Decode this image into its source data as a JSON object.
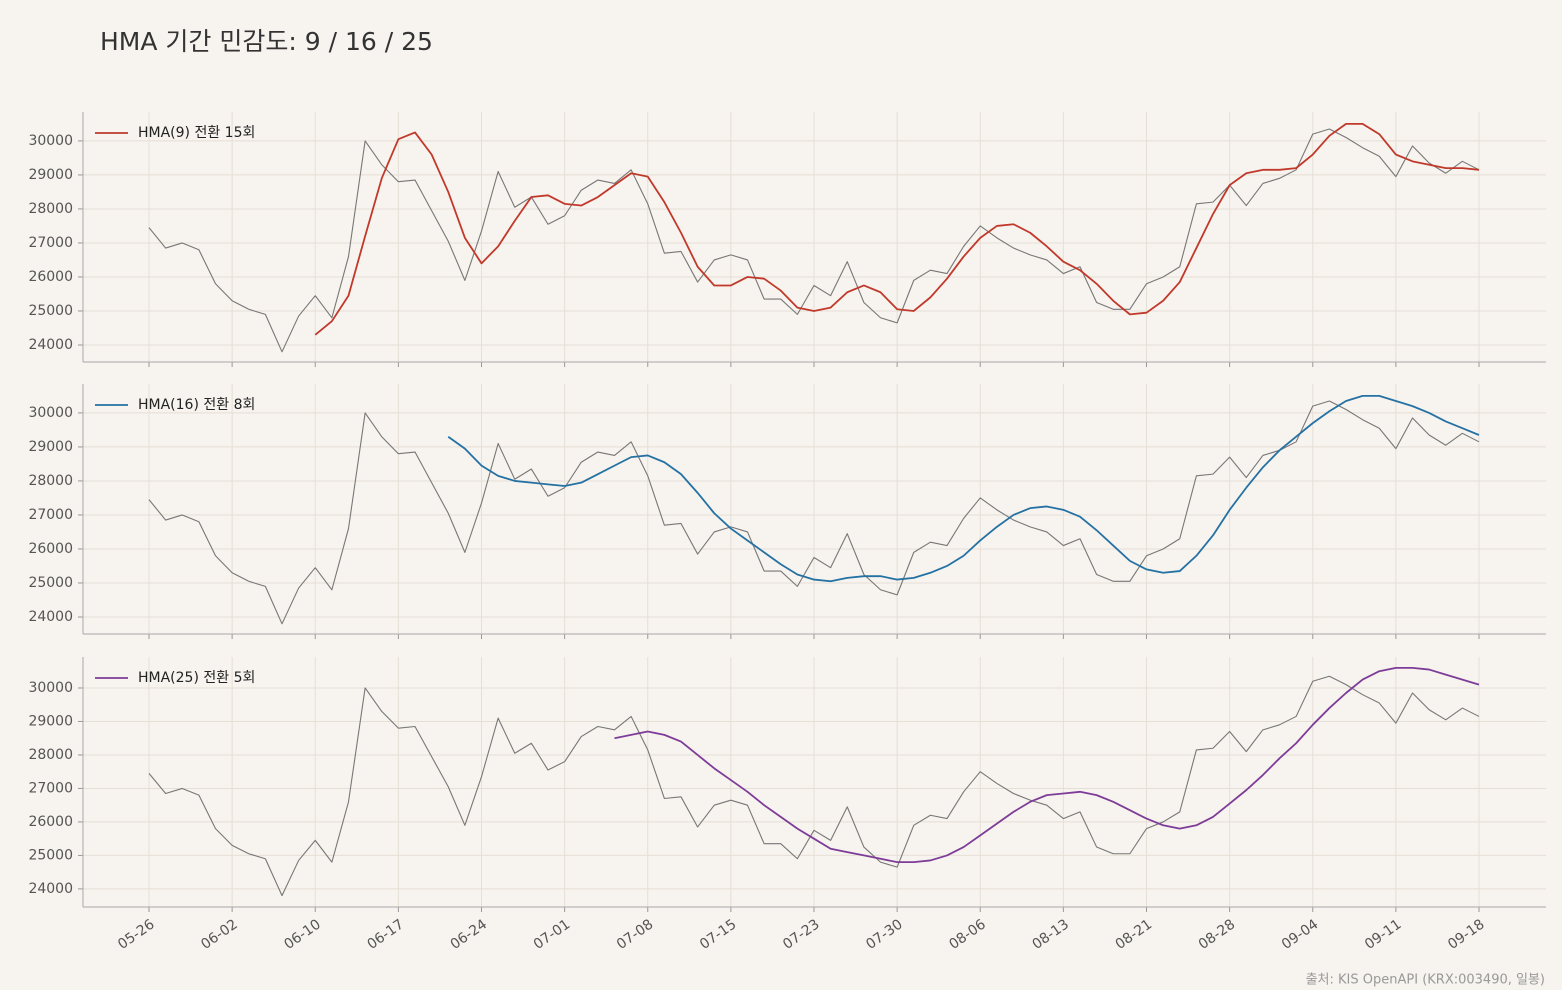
{
  "title": "HMA 기간 민감도: 9 / 16 / 25",
  "source": "출처: KIS OpenAPI (KRX:003490, 일봉)",
  "chart_data": [
    {
      "type": "line",
      "grid": true,
      "legend": "upper left",
      "ylim": [
        23500,
        30850
      ],
      "yticks": [
        24000,
        25000,
        26000,
        27000,
        28000,
        29000,
        30000
      ],
      "series": [
        {
          "color": "#777777",
          "values": [
            27450,
            26850,
            27000,
            26800,
            25800,
            25300,
            25050,
            24900,
            23800,
            24850,
            25450,
            24800,
            26600,
            30000,
            29300,
            28800,
            28850,
            27950,
            27050,
            25900,
            27350,
            29100,
            28050,
            28350,
            27550,
            27800,
            28550,
            28850,
            28750,
            29150,
            28150,
            26700,
            26750,
            25850,
            26500,
            26650,
            26500,
            25350,
            25350,
            24900,
            25750,
            25450,
            26450,
            25250,
            24800,
            24650,
            25900,
            26200,
            26100,
            26900,
            27500,
            27150,
            26850,
            26650,
            26500,
            26100,
            26300,
            25250,
            25050,
            25050,
            25800,
            26000,
            26300,
            28150,
            28200,
            28700,
            28100,
            28750,
            28900,
            29150,
            30200,
            30350,
            30100,
            29800,
            29550,
            28950,
            29850,
            29350,
            29050,
            29400,
            29150
          ]
        },
        {
          "name": "HMA(9) 전환 15회",
          "color": "#c0392b",
          "values": [
            null,
            null,
            null,
            null,
            null,
            null,
            null,
            null,
            null,
            null,
            24300,
            24700,
            25450,
            27200,
            28900,
            30050,
            30250,
            29600,
            28500,
            27150,
            26400,
            26900,
            27650,
            28350,
            28400,
            28150,
            28100,
            28350,
            28700,
            29050,
            28950,
            28200,
            27300,
            26300,
            25750,
            25750,
            26000,
            25950,
            25600,
            25100,
            25000,
            25100,
            25550,
            25750,
            25550,
            25050,
            25000,
            25400,
            25950,
            26600,
            27150,
            27500,
            27550,
            27300,
            26900,
            26450,
            26200,
            25800,
            25300,
            24900,
            24950,
            25300,
            25850,
            26850,
            27850,
            28700,
            29050,
            29150,
            29150,
            29200,
            29600,
            30150,
            30500,
            30500,
            30200,
            29600,
            29400,
            29300,
            29200,
            29200,
            29150
          ]
        }
      ]
    },
    {
      "type": "line",
      "grid": true,
      "legend": "upper left",
      "ylim": [
        23500,
        30850
      ],
      "yticks": [
        24000,
        25000,
        26000,
        27000,
        28000,
        29000,
        30000
      ],
      "series": [
        {
          "color": "#777777",
          "values": [
            27450,
            26850,
            27000,
            26800,
            25800,
            25300,
            25050,
            24900,
            23800,
            24850,
            25450,
            24800,
            26600,
            30000,
            29300,
            28800,
            28850,
            27950,
            27050,
            25900,
            27350,
            29100,
            28050,
            28350,
            27550,
            27800,
            28550,
            28850,
            28750,
            29150,
            28150,
            26700,
            26750,
            25850,
            26500,
            26650,
            26500,
            25350,
            25350,
            24900,
            25750,
            25450,
            26450,
            25250,
            24800,
            24650,
            25900,
            26200,
            26100,
            26900,
            27500,
            27150,
            26850,
            26650,
            26500,
            26100,
            26300,
            25250,
            25050,
            25050,
            25800,
            26000,
            26300,
            28150,
            28200,
            28700,
            28100,
            28750,
            28900,
            29150,
            30200,
            30350,
            30100,
            29800,
            29550,
            28950,
            29850,
            29350,
            29050,
            29400,
            29150
          ]
        },
        {
          "name": "HMA(16) 전환 8회",
          "color": "#2471a3",
          "values": [
            null,
            null,
            null,
            null,
            null,
            null,
            null,
            null,
            null,
            null,
            null,
            null,
            null,
            null,
            null,
            null,
            null,
            null,
            29300,
            28950,
            28450,
            28150,
            28000,
            27950,
            27900,
            27850,
            27950,
            28200,
            28450,
            28700,
            28750,
            28550,
            28200,
            27650,
            27050,
            26600,
            26250,
            25900,
            25550,
            25250,
            25100,
            25050,
            25150,
            25200,
            25200,
            25100,
            25150,
            25300,
            25500,
            25800,
            26250,
            26650,
            27000,
            27200,
            27250,
            27150,
            26950,
            26550,
            26100,
            25650,
            25400,
            25300,
            25350,
            25800,
            26400,
            27150,
            27800,
            28400,
            28900,
            29300,
            29700,
            30050,
            30350,
            30500,
            30500,
            30350,
            30200,
            30000,
            29750,
            29550,
            29350
          ]
        }
      ]
    },
    {
      "type": "line",
      "grid": true,
      "legend": "upper left",
      "categories": [
        "05-26",
        null,
        null,
        null,
        null,
        "06-02",
        null,
        null,
        null,
        null,
        "06-10",
        null,
        null,
        null,
        null,
        "06-17",
        null,
        null,
        null,
        null,
        "06-24",
        null,
        null,
        null,
        null,
        "07-01",
        null,
        null,
        null,
        null,
        "07-08",
        null,
        null,
        null,
        null,
        "07-15",
        null,
        null,
        null,
        null,
        "07-23",
        null,
        null,
        null,
        null,
        "07-30",
        null,
        null,
        null,
        null,
        "08-06",
        null,
        null,
        null,
        null,
        "08-13",
        null,
        null,
        null,
        null,
        "08-21",
        null,
        null,
        null,
        null,
        "08-28",
        null,
        null,
        null,
        null,
        "09-04",
        null,
        null,
        null,
        null,
        "09-11",
        null,
        null,
        null,
        null,
        "09-18"
      ],
      "ylim": [
        23460,
        30925
      ],
      "yticks": [
        24000,
        25000,
        26000,
        27000,
        28000,
        29000,
        30000
      ],
      "series": [
        {
          "color": "#777777",
          "values": [
            27450,
            26850,
            27000,
            26800,
            25800,
            25300,
            25050,
            24900,
            23800,
            24850,
            25450,
            24800,
            26600,
            30000,
            29300,
            28800,
            28850,
            27950,
            27050,
            25900,
            27350,
            29100,
            28050,
            28350,
            27550,
            27800,
            28550,
            28850,
            28750,
            29150,
            28150,
            26700,
            26750,
            25850,
            26500,
            26650,
            26500,
            25350,
            25350,
            24900,
            25750,
            25450,
            26450,
            25250,
            24800,
            24650,
            25900,
            26200,
            26100,
            26900,
            27500,
            27150,
            26850,
            26650,
            26500,
            26100,
            26300,
            25250,
            25050,
            25050,
            25800,
            26000,
            26300,
            28150,
            28200,
            28700,
            28100,
            28750,
            28900,
            29150,
            30200,
            30350,
            30100,
            29800,
            29550,
            28950,
            29850,
            29350,
            29050,
            29400,
            29150
          ]
        },
        {
          "name": "HMA(25) 전환 5회",
          "color": "#7d3c98",
          "values": [
            null,
            null,
            null,
            null,
            null,
            null,
            null,
            null,
            null,
            null,
            null,
            null,
            null,
            null,
            null,
            null,
            null,
            null,
            null,
            null,
            null,
            null,
            null,
            null,
            null,
            null,
            null,
            null,
            28500,
            28600,
            28700,
            28600,
            28400,
            28000,
            27600,
            27250,
            26900,
            26500,
            26150,
            25800,
            25500,
            25200,
            25100,
            25000,
            24900,
            24800,
            24800,
            24850,
            25000,
            25250,
            25600,
            25950,
            26300,
            26600,
            26800,
            26850,
            26900,
            26800,
            26600,
            26350,
            26100,
            25900,
            25800,
            25900,
            26150,
            26550,
            26950,
            27400,
            27900,
            28350,
            28900,
            29400,
            29850,
            30250,
            30500,
            30600,
            30600,
            30550,
            30400,
            30250,
            30100
          ]
        }
      ]
    }
  ]
}
